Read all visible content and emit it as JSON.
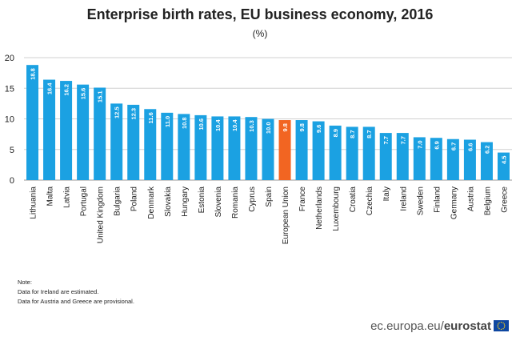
{
  "chart_data": {
    "type": "bar",
    "title": "Enterprise birth rates, EU business economy, 2016",
    "subtitle": "(%)",
    "categories": [
      "Lithuania",
      "Malta",
      "Latvia",
      "Portugal",
      "United Kingdom",
      "Bulgaria",
      "Poland",
      "Denmark",
      "Slovakia",
      "Hungary",
      "Estonia",
      "Slovenia",
      "Romania",
      "Cyprus",
      "Spain",
      "European Union",
      "France",
      "Netherlands",
      "Luxembourg",
      "Croatia",
      "Czechia",
      "Italy",
      "Ireland",
      "Sweden",
      "Finland",
      "Germany",
      "Austria",
      "Belgium",
      "Greece"
    ],
    "values": [
      18.8,
      16.4,
      16.2,
      15.6,
      15.1,
      12.5,
      12.3,
      11.6,
      11.0,
      10.8,
      10.6,
      10.4,
      10.4,
      10.3,
      10.0,
      9.8,
      9.8,
      9.6,
      8.9,
      8.7,
      8.7,
      7.7,
      7.7,
      7.0,
      6.9,
      6.7,
      6.6,
      6.2,
      4.5
    ],
    "value_labels": [
      "18.8",
      "16.4",
      "16.2",
      "15.6",
      "15.1",
      "12.5",
      "12.3",
      "11.6",
      "11.0",
      "10.8",
      "10.6",
      "10.4",
      "10.4",
      "10.3",
      "10.0",
      "9.8",
      "9.8",
      "9.6",
      "8.9",
      "8.7",
      "8.7",
      "7.7",
      "7.7",
      "7.0",
      "6.9",
      "6.7",
      "6.6",
      "6.2",
      "4.5"
    ],
    "highlight": "European Union",
    "ylim": [
      0,
      20
    ],
    "yticks": [
      "0",
      "5",
      "10",
      "15",
      "20"
    ],
    "grid": true,
    "colors": {
      "bar": "#1ba1e2",
      "highlight": "#f26522",
      "grid": "#d0d0d0"
    },
    "xlabel": "",
    "ylabel": ""
  },
  "notes": {
    "heading": "Note:",
    "line1": "Data for Ireland are estimated.",
    "line2": "Data for Austria  and Greece are provisional."
  },
  "footer": {
    "site": "ec.europa.eu/",
    "brand": "eurostat"
  }
}
